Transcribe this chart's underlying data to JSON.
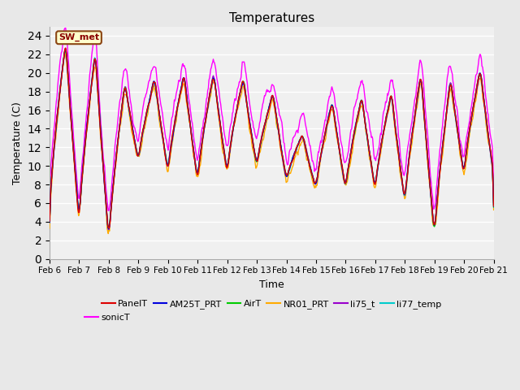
{
  "title": "Temperatures",
  "xlabel": "Time",
  "ylabel": "Temperature (C)",
  "ylim": [
    0,
    25
  ],
  "yticks": [
    0,
    2,
    4,
    6,
    8,
    10,
    12,
    14,
    16,
    18,
    20,
    22,
    24
  ],
  "x_tick_labels": [
    "Feb 6",
    "Feb 7",
    "Feb 8",
    "Feb 9",
    "Feb 10",
    "Feb 11",
    "Feb 12",
    "Feb 13",
    "Feb 14",
    "Feb 15",
    "Feb 16",
    "Feb 17",
    "Feb 18",
    "Feb 19",
    "Feb 20",
    "Feb 21"
  ],
  "series_colors": {
    "PanelT": "#dd0000",
    "AM25T_PRT": "#0000dd",
    "AirT": "#00cc00",
    "NR01_PRT": "#ffaa00",
    "li75_t": "#9900cc",
    "li77_temp": "#00cccc",
    "sonicT": "#ff00ff"
  },
  "annotation_text": "SW_met",
  "bg_color": "#e8e8e8",
  "plot_bg_color": "#e8e8e8",
  "grid_color": "#ffffff",
  "figsize": [
    6.4,
    4.8
  ],
  "dpi": 100
}
